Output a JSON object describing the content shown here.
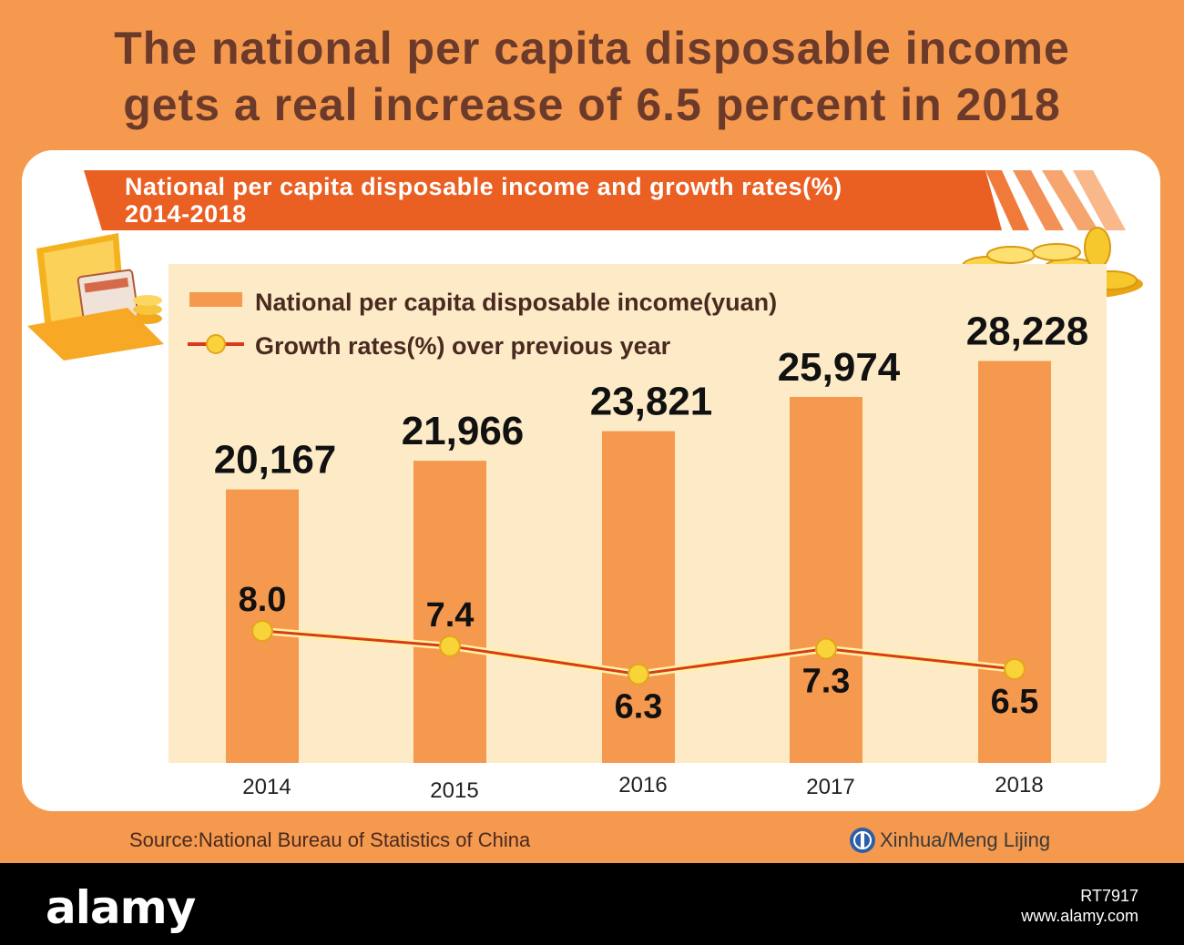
{
  "title_line1": "The national per capita disposable income",
  "title_line2": "gets a real increase of 6.5 percent in 2018",
  "subtitle_line1": "National per capita disposable income and growth rates(%)",
  "subtitle_line2": "2014-2018",
  "source": "Source:National Bureau of Statistics of China",
  "credit": "Xinhua/Meng Lijing",
  "watermark": {
    "logo": "alamy",
    "image_id": "RT7917",
    "site": "www.alamy.com"
  },
  "icons": [
    "wallet-icon",
    "gold-coins-icon",
    "xinhua-logo-icon"
  ],
  "colors": {
    "background": "#f5994e",
    "banner": "#ea5f22",
    "bar": "#f5994e",
    "line": "#d93a1e",
    "marker": "#f8d33a",
    "plot_bg": "#fdebc8",
    "title": "#6b3a2a"
  },
  "chart_data": {
    "type": "bar",
    "categories": [
      "2014",
      "2015",
      "2016",
      "2017",
      "2018"
    ],
    "series": [
      {
        "name": "National per capita disposable income(yuan)",
        "type": "bar",
        "values": [
          20167,
          21966,
          23821,
          25974,
          28228
        ],
        "labels": [
          "20,167",
          "21,966",
          "23,821",
          "25,974",
          "28,228"
        ]
      },
      {
        "name": "Growth rates(%) over previous year",
        "type": "line",
        "values": [
          8.0,
          7.4,
          6.3,
          7.3,
          6.5
        ],
        "labels": [
          "8.0",
          "7.4",
          "6.3",
          "7.3",
          "6.5"
        ]
      }
    ],
    "legend_position": "top-left"
  }
}
